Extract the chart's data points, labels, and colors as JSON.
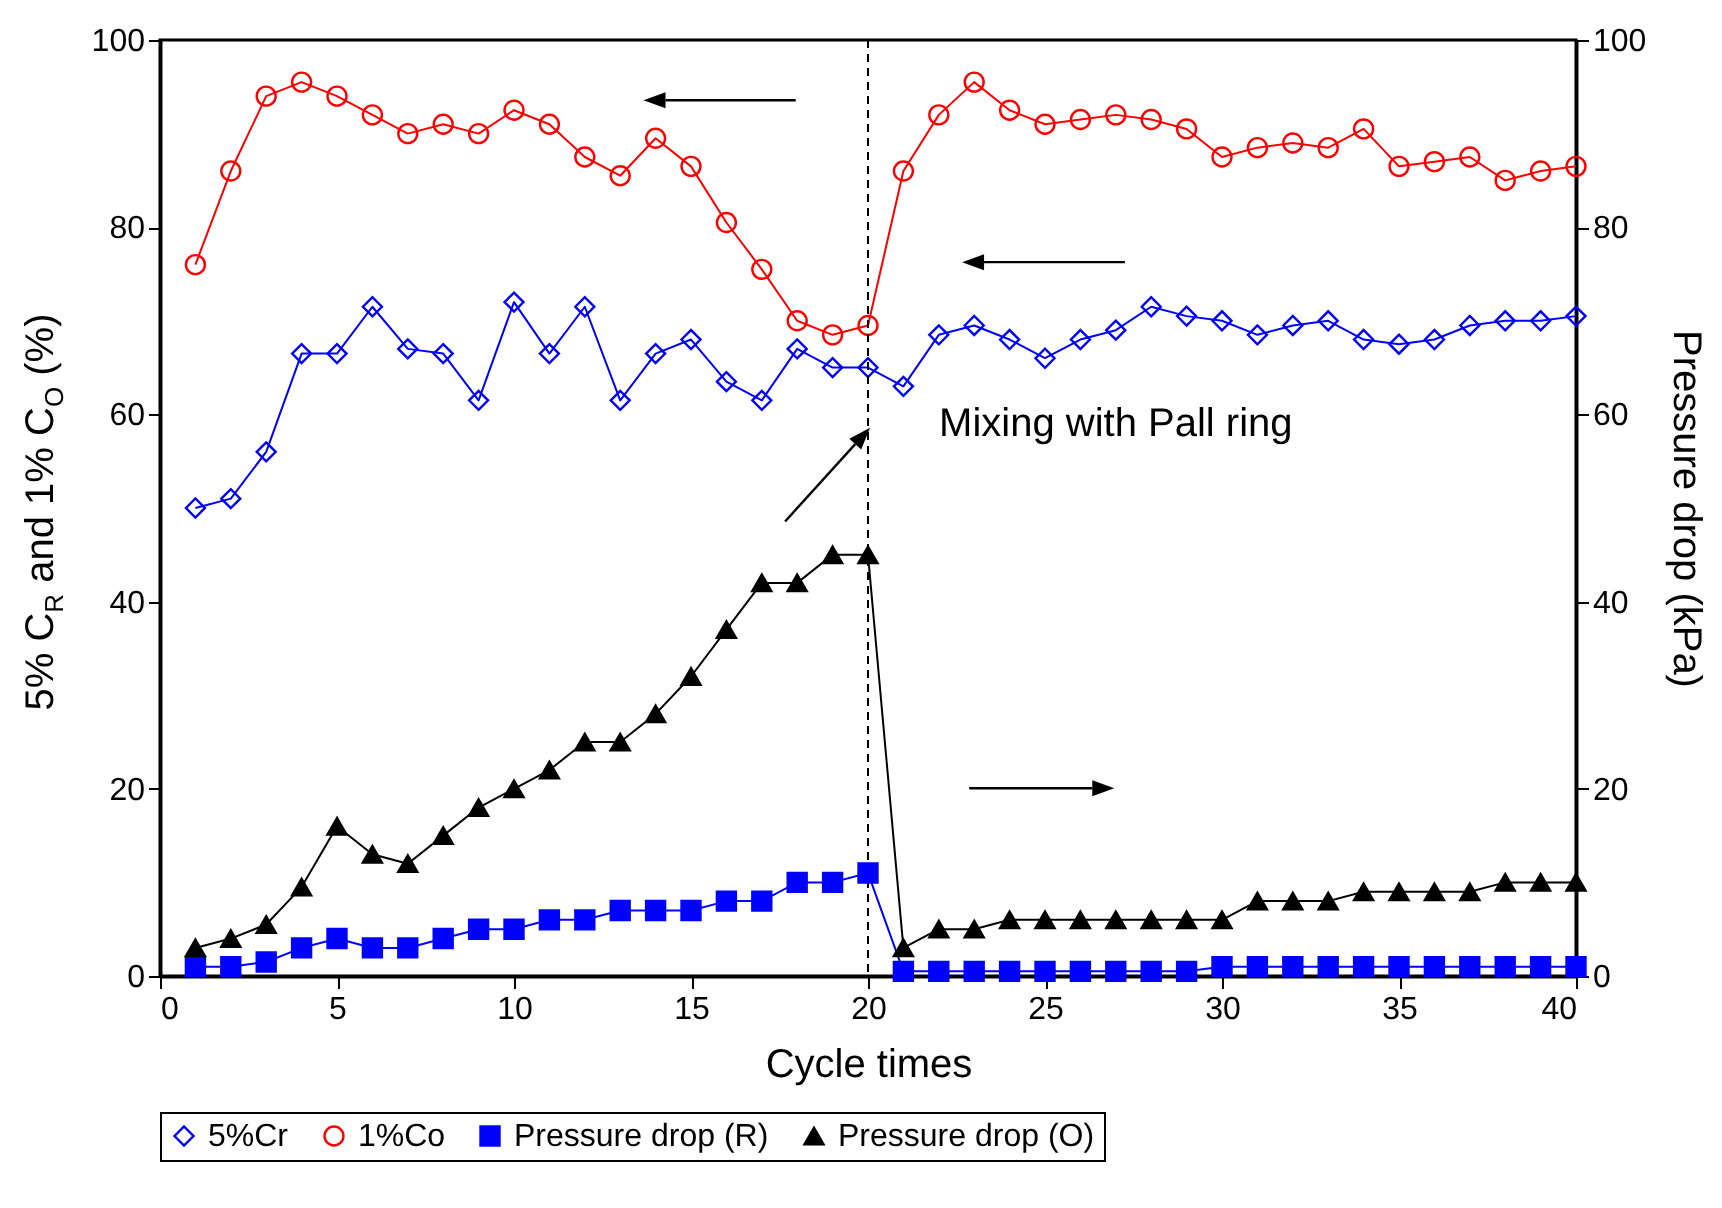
{
  "chart_data": {
    "type": "line",
    "xlabel": "Cycle times",
    "ylabel": "5% C$_{R}$ and 1% C$_{O}$ (%)",
    "y2label": "Pressure drop (kPa)",
    "x": [
      1,
      2,
      3,
      4,
      5,
      6,
      7,
      8,
      9,
      10,
      11,
      12,
      13,
      14,
      15,
      16,
      17,
      18,
      19,
      20,
      21,
      22,
      23,
      24,
      25,
      26,
      27,
      28,
      29,
      30,
      31,
      32,
      33,
      34,
      35,
      36,
      37,
      38,
      39,
      40
    ],
    "series": [
      {
        "name": "5%Cr",
        "color": "#0000ff",
        "marker": "diamond",
        "values": [
          50,
          51,
          56,
          66.5,
          66.5,
          71.5,
          67,
          66.5,
          61.5,
          72,
          66.5,
          71.5,
          61.5,
          66.5,
          68,
          63.5,
          61.5,
          67,
          65,
          65,
          63,
          68.5,
          69.5,
          68,
          66,
          68,
          69,
          71.5,
          70.5,
          70,
          68.5,
          69.5,
          70,
          68,
          67.5,
          68,
          69.5,
          70,
          70,
          70.5
        ]
      },
      {
        "name": "1%Co",
        "color": "#ff0000",
        "marker": "circle",
        "values": [
          76,
          86,
          94,
          95.5,
          94,
          92,
          90,
          91,
          90,
          92.5,
          91,
          87.5,
          85.5,
          89.5,
          86.5,
          80.5,
          75.5,
          70,
          68.5,
          69.5,
          86,
          92,
          95.5,
          92.5,
          91,
          91.5,
          92,
          91.5,
          90.5,
          87.5,
          88.5,
          89,
          88.5,
          90.5,
          86.5,
          87,
          87.5,
          85,
          86,
          86.5
        ]
      },
      {
        "name": "Pressure drop (R)",
        "color": "#0000ff",
        "marker": "square",
        "axis": "y2",
        "values": [
          1,
          1,
          1.5,
          3,
          4,
          3,
          3,
          4,
          5,
          5,
          6,
          6,
          7,
          7,
          7,
          8,
          8,
          10,
          10,
          11,
          0.5,
          0.5,
          0.5,
          0.5,
          0.5,
          0.5,
          0.5,
          0.5,
          0.5,
          1,
          1,
          1,
          1,
          1,
          1,
          1,
          1,
          1,
          1,
          1
        ]
      },
      {
        "name": "Pressure drop (O)",
        "color": "#000000",
        "marker": "triangle",
        "axis": "y2",
        "values": [
          3,
          4,
          5.5,
          9.5,
          16,
          13,
          12,
          15,
          18,
          20,
          22,
          25,
          25,
          28,
          32,
          37,
          42,
          42,
          45,
          45,
          3,
          5,
          5,
          6,
          6,
          6,
          6,
          6,
          6,
          6,
          8,
          8,
          8,
          9,
          9,
          9,
          9,
          10,
          10,
          10
        ]
      }
    ],
    "xlim": [
      0,
      40
    ],
    "xticks": [
      0,
      5,
      10,
      15,
      20,
      25,
      30,
      35,
      40
    ],
    "ylim": [
      0,
      100
    ],
    "yticks": [
      0,
      20,
      40,
      60,
      80,
      100
    ],
    "y2lim": [
      0,
      100
    ],
    "y2ticks": [
      0,
      20,
      40,
      60,
      80,
      100
    ],
    "ref_lines": [
      {
        "axis": "x",
        "value": 20,
        "color": "#000000",
        "line_style": "dashed"
      }
    ],
    "annotations": [
      "Mixing with Pall ring"
    ],
    "legend": "bottom",
    "grid": false
  }
}
